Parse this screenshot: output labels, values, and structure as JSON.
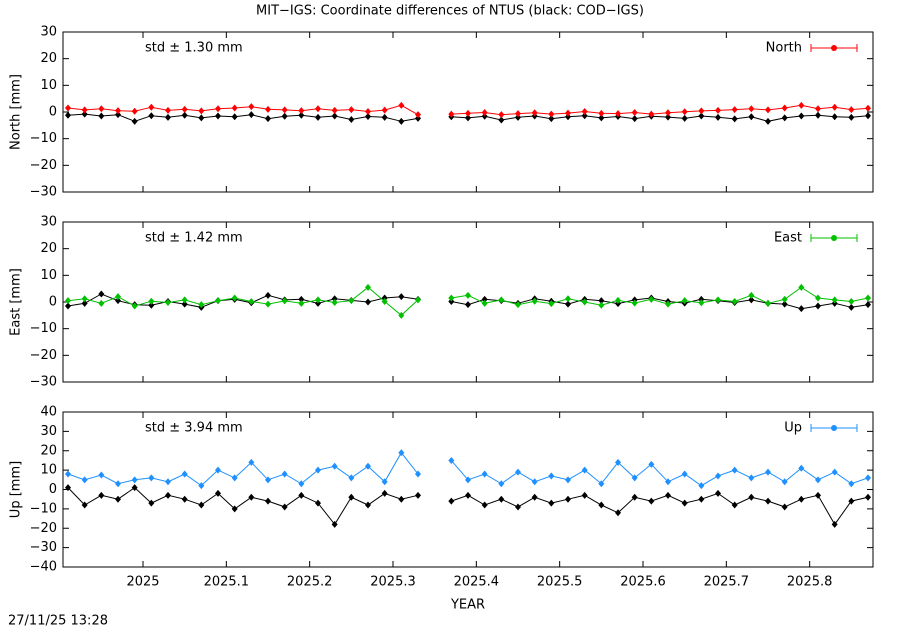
{
  "title": "MIT−IGS: Coordinate differences of NTUS (black: COD−IGS)",
  "footer": "27/11/25 13:28",
  "chart_data": [
    {
      "type": "line",
      "ylabel": "North [mm]",
      "annotation": "std ± 1.30 mm",
      "legend": "top-right",
      "xlim": [
        2024.904,
        2025.876
      ],
      "xticks": [
        2025,
        2025.1,
        2025.2,
        2025.3,
        2025.4,
        2025.5,
        2025.6,
        2025.7,
        2025.8
      ],
      "ylim": [
        -30,
        30
      ],
      "yticks": [
        {
          "value": -30,
          "label": "−30"
        },
        {
          "value": -20,
          "label": "−20"
        },
        {
          "value": -10,
          "label": "−10"
        },
        0,
        10,
        20,
        30
      ],
      "x": [
        2024.91,
        2024.93,
        2024.95,
        2024.97,
        2024.99,
        2025.01,
        2025.03,
        2025.05,
        2025.07,
        2025.09,
        2025.11,
        2025.13,
        2025.15,
        2025.17,
        2025.19,
        2025.21,
        2025.23,
        2025.25,
        2025.27,
        2025.29,
        2025.31,
        2025.33,
        2025.35,
        2025.37,
        2025.39,
        2025.41,
        2025.43,
        2025.45,
        2025.47,
        2025.49,
        2025.51,
        2025.53,
        2025.55,
        2025.57,
        2025.59,
        2025.61,
        2025.63,
        2025.65,
        2025.67,
        2025.69,
        2025.71,
        2025.73,
        2025.75,
        2025.77,
        2025.79,
        2025.81,
        2025.83,
        2025.85,
        2025.87
      ],
      "series": [
        {
          "color": "#000000",
          "values": [
            -1.2,
            -0.8,
            -1.5,
            -1.0,
            -3.5,
            -1.4,
            -2.0,
            -1.2,
            -2.2,
            -1.5,
            -1.8,
            -1.0,
            -2.5,
            -1.6,
            -1.2,
            -2.0,
            -1.5,
            -2.8,
            -1.7,
            -2.0,
            -3.5,
            -2.4,
            null,
            -1.8,
            -2.2,
            -1.6,
            -3.0,
            -2.0,
            -1.5,
            -2.5,
            -1.8,
            -1.4,
            -2.2,
            -1.7,
            -2.5,
            -1.6,
            -1.9,
            -2.4,
            -1.5,
            -2.0,
            -2.6,
            -1.8,
            -3.5,
            -2.2,
            -1.5,
            -1.2,
            -1.8,
            -2.0,
            -1.4
          ]
        },
        {
          "name": "North",
          "color": "#ff0000",
          "values": [
            1.5,
            0.8,
            1.2,
            0.5,
            0.3,
            1.8,
            0.6,
            1.0,
            0.4,
            1.2,
            1.5,
            2.0,
            1.0,
            0.8,
            0.5,
            1.2,
            0.6,
            0.9,
            0.2,
            0.7,
            2.5,
            -1.0,
            null,
            -0.8,
            -0.5,
            -0.2,
            -1.0,
            -0.6,
            -0.3,
            -0.8,
            -0.4,
            0.2,
            -0.5,
            -0.6,
            -0.2,
            -0.8,
            -0.3,
            0.1,
            0.4,
            0.6,
            0.9,
            1.2,
            0.8,
            1.5,
            2.5,
            1.2,
            1.8,
            0.9,
            1.4
          ]
        }
      ]
    },
    {
      "type": "line",
      "ylabel": "East [mm]",
      "annotation": "std ± 1.42 mm",
      "legend": "top-right",
      "xlim": [
        2024.904,
        2025.876
      ],
      "xticks": [
        2025,
        2025.1,
        2025.2,
        2025.3,
        2025.4,
        2025.5,
        2025.6,
        2025.7,
        2025.8
      ],
      "ylim": [
        -30,
        30
      ],
      "yticks": [
        {
          "value": -30,
          "label": "−30"
        },
        {
          "value": -20,
          "label": "−20"
        },
        {
          "value": -10,
          "label": "−10"
        },
        0,
        10,
        20,
        30
      ],
      "x": [
        2024.91,
        2024.93,
        2024.95,
        2024.97,
        2024.99,
        2025.01,
        2025.03,
        2025.05,
        2025.07,
        2025.09,
        2025.11,
        2025.13,
        2025.15,
        2025.17,
        2025.19,
        2025.21,
        2025.23,
        2025.25,
        2025.27,
        2025.29,
        2025.31,
        2025.33,
        2025.35,
        2025.37,
        2025.39,
        2025.41,
        2025.43,
        2025.45,
        2025.47,
        2025.49,
        2025.51,
        2025.53,
        2025.55,
        2025.57,
        2025.59,
        2025.61,
        2025.63,
        2025.65,
        2025.67,
        2025.69,
        2025.71,
        2025.73,
        2025.75,
        2025.77,
        2025.79,
        2025.81,
        2025.83,
        2025.85,
        2025.87
      ],
      "series": [
        {
          "color": "#000000",
          "values": [
            -1.5,
            -0.5,
            3.0,
            0.5,
            -1.0,
            -1.2,
            0.2,
            -0.8,
            -2.0,
            0.5,
            1.0,
            -0.3,
            2.5,
            0.8,
            1.0,
            -0.5,
            1.2,
            0.6,
            0.0,
            1.5,
            2.0,
            1.0,
            null,
            0.2,
            -1.0,
            1.0,
            0.5,
            -0.5,
            1.2,
            0.3,
            -0.8,
            1.0,
            0.5,
            -0.6,
            0.8,
            1.5,
            0.2,
            -0.4,
            1.0,
            0.5,
            -0.2,
            0.8,
            -0.5,
            -0.8,
            -2.5,
            -1.5,
            -0.5,
            -2.0,
            -1.0
          ]
        },
        {
          "name": "East",
          "color": "#00c000",
          "values": [
            0.5,
            1.2,
            -0.5,
            2.0,
            -1.5,
            0.3,
            -0.2,
            0.8,
            -1.0,
            0.5,
            1.5,
            0.2,
            -0.8,
            0.4,
            -0.5,
            0.8,
            -0.2,
            0.5,
            5.5,
            0.2,
            -5.0,
            0.8,
            null,
            1.5,
            2.5,
            -0.5,
            0.8,
            -1.0,
            0.3,
            -0.6,
            1.2,
            0.0,
            -1.2,
            0.6,
            -0.4,
            1.0,
            -0.8,
            0.5,
            -0.3,
            0.8,
            0.2,
            2.5,
            -0.5,
            1.0,
            5.5,
            1.5,
            0.8,
            0.2,
            1.5
          ]
        }
      ]
    },
    {
      "type": "line",
      "ylabel": "Up [mm]",
      "xlabel": "YEAR",
      "annotation": "std ± 3.94 mm",
      "legend": "top-right",
      "xlim": [
        2024.904,
        2025.876
      ],
      "xticks": [
        2025,
        2025.1,
        2025.2,
        2025.3,
        2025.4,
        2025.5,
        2025.6,
        2025.7,
        2025.8
      ],
      "ylim": [
        -40,
        40
      ],
      "yticks": [
        {
          "value": -40,
          "label": "−40"
        },
        {
          "value": -30,
          "label": "−30"
        },
        {
          "value": -20,
          "label": "−20"
        },
        {
          "value": -10,
          "label": "−10"
        },
        0,
        10,
        20,
        30,
        40
      ],
      "x": [
        2024.91,
        2024.93,
        2024.95,
        2024.97,
        2024.99,
        2025.01,
        2025.03,
        2025.05,
        2025.07,
        2025.09,
        2025.11,
        2025.13,
        2025.15,
        2025.17,
        2025.19,
        2025.21,
        2025.23,
        2025.25,
        2025.27,
        2025.29,
        2025.31,
        2025.33,
        2025.35,
        2025.37,
        2025.39,
        2025.41,
        2025.43,
        2025.45,
        2025.47,
        2025.49,
        2025.51,
        2025.53,
        2025.55,
        2025.57,
        2025.59,
        2025.61,
        2025.63,
        2025.65,
        2025.67,
        2025.69,
        2025.71,
        2025.73,
        2025.75,
        2025.77,
        2025.79,
        2025.81,
        2025.83,
        2025.85,
        2025.87
      ],
      "series": [
        {
          "color": "#000000",
          "values": [
            1.0,
            -8.0,
            -3.0,
            -5.0,
            1.0,
            -7.0,
            -3.0,
            -5.0,
            -8.0,
            -2.0,
            -10.0,
            -4.0,
            -6.0,
            -9.0,
            -3.0,
            -7.0,
            -18.0,
            -4.0,
            -8.0,
            -2.0,
            -5.0,
            -3.0,
            null,
            -6.0,
            -3.0,
            -8.0,
            -5.0,
            -9.0,
            -4.0,
            -7.0,
            -5.0,
            -3.0,
            -8.0,
            -12.0,
            -4.0,
            -6.0,
            -3.0,
            -7.0,
            -5.0,
            -2.0,
            -8.0,
            -4.0,
            -6.0,
            -9.0,
            -5.0,
            -3.0,
            -18.0,
            -6.0,
            -4.0
          ]
        },
        {
          "name": "Up",
          "color": "#1e90ff",
          "values": [
            8.0,
            5.0,
            7.5,
            3.0,
            5.0,
            6.0,
            4.0,
            8.0,
            2.0,
            10.0,
            6.0,
            14.0,
            5.0,
            8.0,
            3.0,
            10.0,
            12.0,
            6.0,
            12.0,
            4.0,
            19.0,
            8.0,
            null,
            15.0,
            5.0,
            8.0,
            3.0,
            9.0,
            4.0,
            7.0,
            5.0,
            10.0,
            3.0,
            14.0,
            6.0,
            13.0,
            4.0,
            8.0,
            2.0,
            7.0,
            10.0,
            6.0,
            9.0,
            4.0,
            11.0,
            5.0,
            9.0,
            3.0,
            6.0
          ]
        }
      ]
    }
  ]
}
